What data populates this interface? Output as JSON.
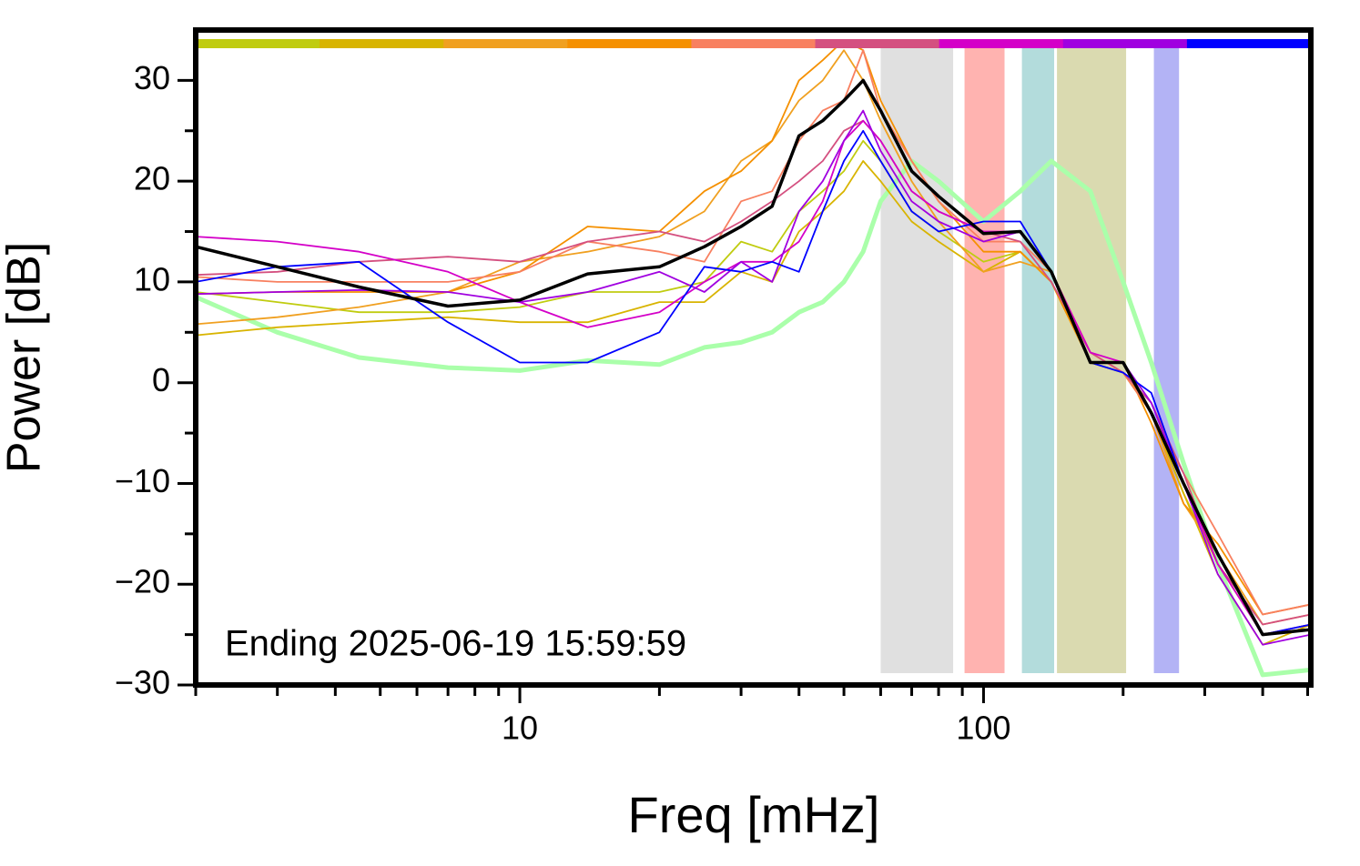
{
  "chart_data": {
    "type": "line",
    "xlabel": "Freq [mHz]",
    "ylabel": "Power [dB]",
    "annotation": "Ending 2025-06-19 15:59:59",
    "xscale": "log",
    "xlim": [
      2,
      508
    ],
    "ylim": [
      -30,
      35
    ],
    "xticks": [
      10,
      100
    ],
    "xminor_ticks": [
      2,
      3,
      4,
      5,
      6,
      7,
      8,
      9,
      20,
      30,
      40,
      50,
      60,
      70,
      80,
      90,
      200,
      300,
      400,
      500
    ],
    "yticks": [
      {
        "value": -30,
        "label": "−30"
      },
      {
        "value": -20,
        "label": "−20"
      },
      {
        "value": -10,
        "label": "−10"
      },
      0,
      10,
      20,
      30
    ],
    "yminor_ticks": [
      -25,
      -15,
      -5,
      5,
      15,
      25
    ],
    "spans": [
      {
        "x": [
          60,
          86
        ],
        "color": "#e0e0e0"
      },
      {
        "x": [
          91,
          111
        ],
        "color": "#ffb3b0"
      },
      {
        "x": [
          121,
          142
        ],
        "color": "#b3dcdc"
      },
      {
        "x": [
          144,
          203
        ],
        "color": "#dadab0"
      },
      {
        "x": [
          233,
          264
        ],
        "color": "#b3b3f5"
      }
    ],
    "x": [
      2,
      3,
      4.5,
      7,
      10,
      14,
      20,
      25,
      30,
      35,
      40,
      45,
      50,
      55,
      60,
      70,
      80,
      100,
      120,
      140,
      170,
      200,
      230,
      270,
      320,
      400,
      508
    ],
    "series": [
      {
        "color": "#aaffaa",
        "values": [
          8.5,
          5,
          2.5,
          1.5,
          1.2,
          2.2,
          1.8,
          3.5,
          4,
          5,
          7,
          8,
          10,
          13,
          18,
          22,
          20,
          16,
          19,
          22,
          19,
          10,
          2,
          -8,
          -18,
          -29,
          -28.5
        ]
      },
      {
        "color": "#c0cc10",
        "values": [
          9,
          8,
          7,
          7,
          7.5,
          9,
          9,
          10,
          14,
          13,
          17,
          19,
          21,
          24,
          22,
          17,
          15,
          12,
          13,
          10,
          2,
          1,
          -3,
          -11,
          -18,
          -25,
          -24
        ]
      },
      {
        "color": "#d8b400",
        "values": [
          4.7,
          5.5,
          6,
          6.5,
          6,
          6,
          8,
          8,
          11,
          10,
          15,
          17,
          19,
          22,
          20,
          16,
          14,
          11,
          13,
          10,
          2,
          1,
          -3,
          -11,
          -19,
          -26,
          -24
        ]
      },
      {
        "color": "#f0a020",
        "values": [
          5.8,
          6.5,
          7.5,
          9,
          12,
          13,
          14.5,
          17,
          22,
          24,
          28,
          30,
          33,
          30,
          26,
          20,
          16,
          11,
          12,
          11,
          3,
          1,
          -3,
          -12,
          -17,
          -24,
          -23
        ]
      },
      {
        "color": "#f59000",
        "values": [
          8.8,
          9,
          9,
          9,
          11,
          15.5,
          15,
          19,
          21,
          24,
          30,
          32,
          34,
          33,
          28,
          22,
          18,
          13,
          13,
          10,
          2,
          2,
          -4,
          -12,
          -16,
          -23,
          -22
        ]
      },
      {
        "color": "#f88060",
        "values": [
          10.5,
          10,
          10,
          10,
          11,
          14,
          13,
          12,
          18,
          19,
          24,
          27,
          28,
          33,
          27,
          22,
          18,
          14,
          14,
          11,
          3,
          1,
          -3,
          -9,
          -15,
          -23,
          -22
        ]
      },
      {
        "color": "#d45080",
        "values": [
          10.7,
          11,
          12,
          12.5,
          12,
          14,
          15,
          14,
          16,
          18,
          20,
          22,
          25,
          26,
          24,
          19,
          17,
          15,
          14,
          10,
          3,
          1,
          -2,
          -9,
          -18,
          -24,
          -23
        ]
      },
      {
        "color": "#d400c8",
        "values": [
          14.5,
          14,
          13,
          11,
          8,
          5.5,
          7,
          10,
          12,
          12,
          14,
          18,
          24,
          26,
          24,
          19,
          17,
          15,
          15,
          11,
          3,
          2,
          -3,
          -10,
          -18,
          -25,
          -24
        ]
      },
      {
        "color": "#a000e0",
        "values": [
          8.8,
          9,
          9.2,
          9,
          8,
          9,
          11,
          9,
          12,
          10,
          17,
          20,
          24,
          27,
          23,
          18,
          16,
          14,
          15,
          11,
          2,
          2,
          -2,
          -10,
          -19,
          -26,
          -25
        ]
      },
      {
        "color": "#0000ff",
        "values": [
          10,
          11.5,
          12,
          6,
          2,
          2,
          5,
          11.5,
          11,
          12,
          11,
          17,
          22,
          25,
          22,
          17,
          15,
          16,
          16,
          11,
          2,
          1,
          -1,
          -10,
          -17,
          -25,
          -24
        ]
      },
      {
        "color": "#000000",
        "values": [
          13.5,
          11.5,
          9.5,
          7.6,
          8.2,
          10.8,
          11.5,
          13.5,
          15.5,
          17.5,
          24.5,
          26,
          28,
          30,
          27,
          21,
          18.5,
          14.8,
          15,
          11,
          2,
          2,
          -3,
          -10,
          -17,
          -25,
          -24.5
        ]
      }
    ]
  }
}
